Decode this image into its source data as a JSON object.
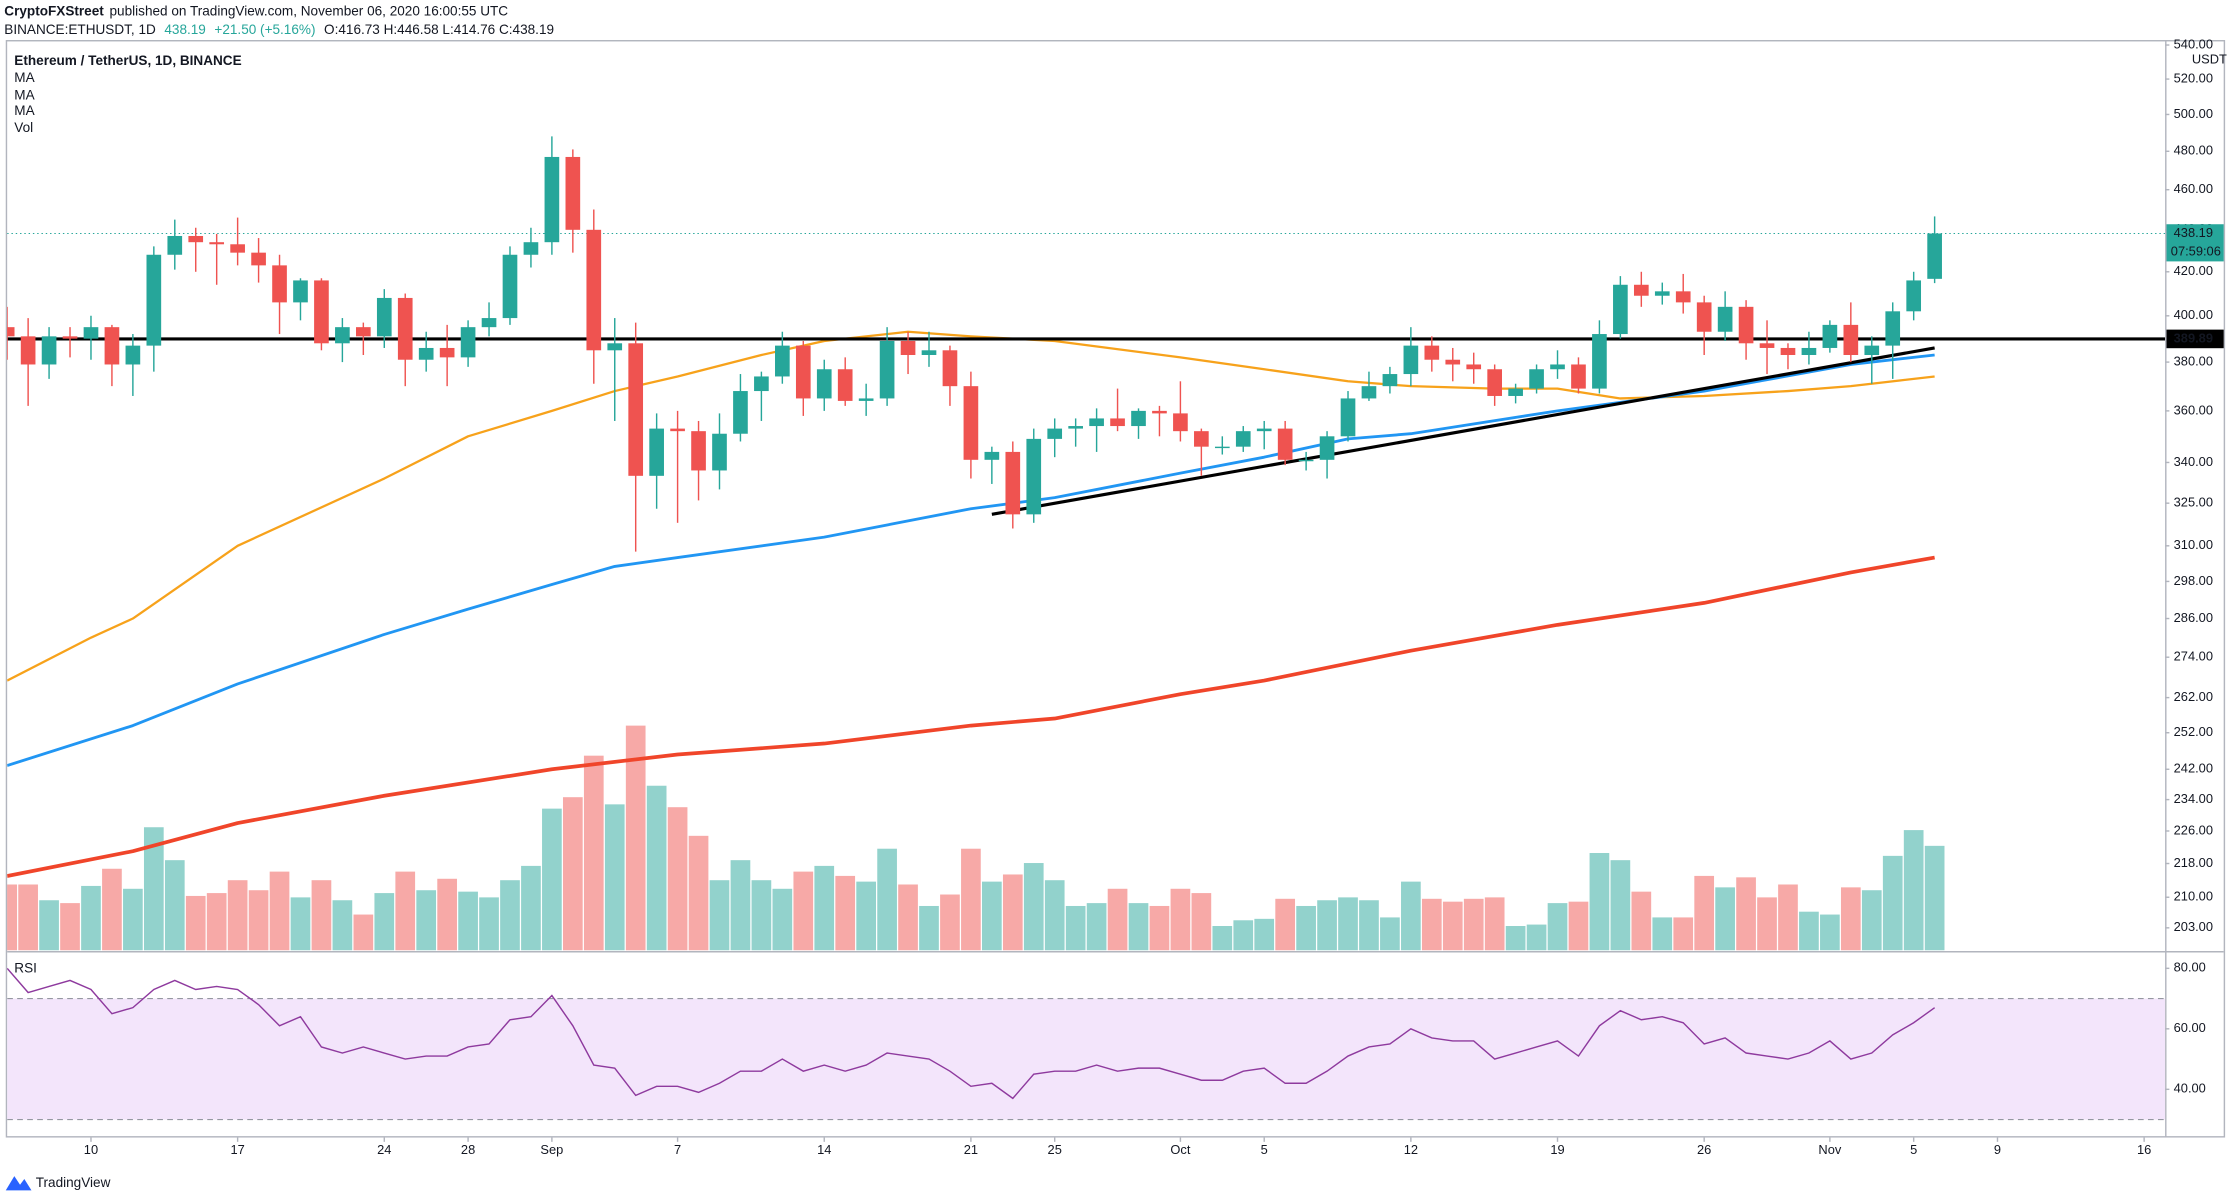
{
  "header": {
    "publisher": "CryptoFXStreet",
    "published": "published on TradingView.com, November 06, 2020 16:00:55 UTC",
    "symbol": "BINANCE:ETHUSDT, 1D",
    "last": "438.19",
    "change": "+21.50 (+5.16%)",
    "ohlc": "O:416.73 H:446.58 L:414.76 C:438.19"
  },
  "footer": {
    "brand": "TradingView"
  },
  "chart_data": {
    "type": "candlestick",
    "title": "Ethereum / TetherUS, 1D, BINANCE",
    "x": [
      "08-06",
      "08-07",
      "08-08",
      "08-09",
      "08-10",
      "08-11",
      "08-12",
      "08-13",
      "08-14",
      "08-15",
      "08-16",
      "08-17",
      "08-18",
      "08-19",
      "08-20",
      "08-21",
      "08-22",
      "08-23",
      "08-24",
      "08-25",
      "08-26",
      "08-27",
      "08-28",
      "08-29",
      "08-30",
      "08-31",
      "09-01",
      "09-02",
      "09-03",
      "09-04",
      "09-05",
      "09-06",
      "09-07",
      "09-08",
      "09-09",
      "09-10",
      "09-11",
      "09-12",
      "09-13",
      "09-14",
      "09-15",
      "09-16",
      "09-17",
      "09-18",
      "09-19",
      "09-20",
      "09-21",
      "09-22",
      "09-23",
      "09-24",
      "09-25",
      "09-26",
      "09-27",
      "09-28",
      "09-29",
      "09-30",
      "10-01",
      "10-02",
      "10-03",
      "10-04",
      "10-05",
      "10-06",
      "10-07",
      "10-08",
      "10-09",
      "10-10",
      "10-11",
      "10-12",
      "10-13",
      "10-14",
      "10-15",
      "10-16",
      "10-17",
      "10-18",
      "10-19",
      "10-20",
      "10-21",
      "10-22",
      "10-23",
      "10-24",
      "10-25",
      "10-26",
      "10-27",
      "10-28",
      "10-29",
      "10-30",
      "10-31",
      "11-01",
      "11-02",
      "11-03",
      "11-04",
      "11-05",
      "11-06"
    ],
    "open": [
      395,
      391,
      379,
      391,
      390,
      395,
      379,
      387,
      428,
      437,
      434,
      433,
      429,
      423,
      406,
      416,
      388,
      395,
      391,
      408,
      381,
      386,
      382,
      395,
      399,
      428,
      434,
      477,
      440,
      385,
      388,
      335,
      353,
      352,
      337,
      351,
      368,
      374,
      387,
      365,
      377,
      364,
      365,
      389,
      383,
      385,
      370,
      341,
      344,
      321,
      349,
      353,
      354,
      357,
      354,
      360,
      359,
      352,
      346,
      346,
      352,
      353,
      341,
      341,
      350,
      365,
      370,
      375,
      387,
      381,
      379,
      377,
      366,
      369,
      377,
      379,
      369,
      392,
      414,
      409,
      411,
      406,
      393,
      404,
      388,
      386,
      383,
      386,
      396,
      383,
      387,
      402,
      416.73
    ],
    "high": [
      404,
      399,
      395,
      395,
      400,
      396,
      392,
      432,
      445,
      441,
      438,
      446,
      436,
      428,
      417,
      417,
      399,
      397,
      412,
      410,
      393,
      396,
      398,
      406,
      432,
      441,
      488,
      481,
      450,
      399,
      397,
      359,
      360,
      356,
      359,
      375,
      376,
      393,
      389,
      381,
      382,
      371,
      395,
      393,
      393,
      387,
      376,
      346,
      348,
      353,
      357,
      357,
      361,
      369,
      361,
      362,
      372,
      353,
      350,
      354,
      356,
      356,
      344,
      352,
      368,
      376,
      378,
      395,
      391,
      386,
      384,
      379,
      371,
      379,
      385,
      382,
      398,
      418,
      420,
      415,
      419,
      409,
      411,
      407,
      398,
      388,
      393,
      398,
      406,
      391,
      406,
      420,
      446.58
    ],
    "low": [
      381,
      362,
      373,
      382,
      381,
      370,
      366,
      376,
      421,
      420,
      414,
      423,
      415,
      392,
      398,
      385,
      380,
      383,
      386,
      370,
      376,
      370,
      378,
      391,
      396,
      422,
      428,
      429,
      371,
      356,
      308,
      323,
      318,
      326,
      330,
      348,
      356,
      371,
      358,
      360,
      362,
      358,
      362,
      375,
      378,
      362,
      334,
      332,
      316,
      318,
      342,
      346,
      344,
      352,
      349,
      350,
      348,
      335,
      343,
      344,
      345,
      339,
      337,
      334,
      348,
      364,
      367,
      370,
      376,
      372,
      371,
      362,
      363,
      367,
      373,
      367,
      367,
      390,
      404,
      405,
      401,
      383,
      389,
      381,
      375,
      377,
      379,
      384,
      380,
      371,
      373,
      398,
      414.76
    ],
    "close": [
      391,
      379,
      391,
      390,
      395,
      379,
      387,
      428,
      437,
      434,
      433,
      429,
      423,
      406,
      416,
      388,
      395,
      391,
      408,
      381,
      386,
      382,
      395,
      399,
      428,
      434,
      477,
      440,
      385,
      388,
      335,
      353,
      352,
      337,
      351,
      368,
      374,
      387,
      365,
      377,
      364,
      365,
      389,
      383,
      385,
      370,
      341,
      344,
      321,
      349,
      353,
      354,
      357,
      354,
      360,
      359,
      352,
      346,
      346,
      352,
      353,
      341,
      341,
      350,
      365,
      370,
      375,
      387,
      381,
      379,
      377,
      366,
      369,
      377,
      379,
      369,
      392,
      414,
      409,
      411,
      406,
      393,
      404,
      388,
      386,
      383,
      386,
      396,
      383,
      387,
      402,
      416,
      438.19
    ],
    "up_color": "#26a69a",
    "down_color": "#ef5350",
    "log": true,
    "ylim": [
      198,
      543
    ],
    "y_unit": "USDT",
    "yticks": [
      {
        "value": 540,
        "label": "540.00"
      },
      {
        "value": 520,
        "label": "520.00"
      },
      {
        "value": 500,
        "label": "500.00"
      },
      {
        "value": 480,
        "label": "480.00"
      },
      {
        "value": 460,
        "label": "460.00"
      },
      {
        "value": 440,
        "label": "440.00"
      },
      {
        "value": 420,
        "label": "420.00"
      },
      {
        "value": 400,
        "label": "400.00"
      },
      {
        "value": 380,
        "label": "380.00"
      },
      {
        "value": 360,
        "label": "360.00"
      },
      {
        "value": 340,
        "label": "340.00"
      },
      {
        "value": 325,
        "label": "325.00"
      },
      {
        "value": 310,
        "label": "310.00"
      },
      {
        "value": 298,
        "label": "298.00"
      },
      {
        "value": 286,
        "label": "286.00"
      },
      {
        "value": 274,
        "label": "274.00"
      },
      {
        "value": 262,
        "label": "262.00"
      },
      {
        "value": 252,
        "label": "252.00"
      },
      {
        "value": 242,
        "label": "242.00"
      },
      {
        "value": 234,
        "label": "234.00"
      },
      {
        "value": 226,
        "label": "226.00"
      },
      {
        "value": 218,
        "label": "218.00"
      },
      {
        "value": 210,
        "label": "210.00"
      },
      {
        "value": 203,
        "label": "203.00"
      }
    ],
    "xlim": [
      "08-06",
      "11-17"
    ],
    "xticks": [
      {
        "value": "08-10",
        "label": "10"
      },
      {
        "value": "08-17",
        "label": "17"
      },
      {
        "value": "08-24",
        "label": "24"
      },
      {
        "value": "08-28",
        "label": "28"
      },
      {
        "value": "09-01",
        "label": "Sep"
      },
      {
        "value": "09-07",
        "label": "7"
      },
      {
        "value": "09-14",
        "label": "14"
      },
      {
        "value": "09-21",
        "label": "21"
      },
      {
        "value": "09-25",
        "label": "25"
      },
      {
        "value": "10-01",
        "label": "Oct"
      },
      {
        "value": "10-05",
        "label": "5"
      },
      {
        "value": "10-12",
        "label": "12"
      },
      {
        "value": "10-19",
        "label": "19"
      },
      {
        "value": "10-26",
        "label": "26"
      },
      {
        "value": "11-01",
        "label": "Nov"
      },
      {
        "value": "11-05",
        "label": "5"
      },
      {
        "value": "11-09",
        "label": "9"
      },
      {
        "value": "11-16",
        "label": "16"
      }
    ],
    "series": [
      {
        "name": "MA",
        "color": "#f7a21b",
        "width": 1.6,
        "x": [
          "08-06",
          "08-10",
          "08-12",
          "08-17",
          "08-24",
          "08-28",
          "09-01",
          "09-04",
          "09-07",
          "09-11",
          "09-14",
          "09-18",
          "09-21",
          "09-25",
          "10-01",
          "10-05",
          "10-09",
          "10-12",
          "10-16",
          "10-19",
          "10-22",
          "10-26",
          "10-30",
          "11-02",
          "11-06"
        ],
        "values": [
          267,
          280,
          286,
          310,
          334,
          350,
          360,
          368,
          374,
          383,
          389,
          393,
          391,
          389,
          382,
          377,
          372,
          370,
          369,
          369,
          365,
          366,
          368,
          370,
          374
        ]
      },
      {
        "name": "MA",
        "color": "#2196f3",
        "width": 2,
        "x": [
          "08-06",
          "08-12",
          "08-17",
          "08-24",
          "08-28",
          "09-01",
          "09-04",
          "09-07",
          "09-14",
          "09-21",
          "09-25",
          "10-01",
          "10-05",
          "10-09",
          "10-12",
          "10-19",
          "10-26",
          "11-02",
          "11-06"
        ],
        "values": [
          243,
          254,
          266,
          281,
          289,
          297,
          303,
          306,
          313,
          323,
          327,
          336,
          342,
          349,
          351,
          360,
          368,
          379,
          383
        ]
      },
      {
        "name": "MA",
        "color": "#f0452a",
        "width": 2.6,
        "x": [
          "08-06",
          "08-12",
          "08-17",
          "08-24",
          "09-01",
          "09-07",
          "09-14",
          "09-21",
          "09-25",
          "10-01",
          "10-05",
          "10-12",
          "10-19",
          "10-26",
          "11-02",
          "11-06"
        ],
        "values": [
          215,
          221,
          228,
          235,
          242,
          246,
          249,
          254,
          256,
          263,
          267,
          276,
          284,
          291,
          301,
          306
        ]
      }
    ],
    "volume": {
      "name": "Vol",
      "ylim": [
        0,
        636
      ],
      "values": [
        46,
        46,
        35,
        33,
        45,
        57,
        43,
        86,
        63,
        38,
        40,
        49,
        42,
        55,
        37,
        49,
        35,
        25,
        40,
        55,
        42,
        50,
        41,
        37,
        49,
        59,
        99,
        107,
        136,
        102,
        157,
        115,
        100,
        80,
        49,
        63,
        49,
        43,
        55,
        59,
        52,
        48,
        71,
        46,
        31,
        39,
        71,
        48,
        53,
        61,
        49,
        31,
        33,
        43,
        33,
        31,
        43,
        40,
        17,
        21,
        22,
        36,
        31,
        35,
        37,
        35,
        23,
        48,
        36,
        34,
        36,
        37,
        17,
        18,
        33,
        34,
        68,
        63,
        41,
        23,
        23,
        52,
        44,
        51,
        37,
        46,
        27,
        25,
        44,
        42,
        66,
        84,
        73
      ]
    },
    "price_lines": [
      {
        "value": 389.89,
        "label": "389.89",
        "color": "#000000"
      }
    ],
    "trend_lines": [
      {
        "x": [
          "09-22",
          "11-06"
        ],
        "values": [
          321,
          386
        ],
        "color": "#000000"
      }
    ],
    "last_price": {
      "label": "438.19",
      "countdown": "07:59:06"
    },
    "rsi": {
      "name": "RSI",
      "color": "#8e3a9e",
      "band": [
        30,
        70
      ],
      "band_color": "#f3e5fb",
      "ylim": [
        25,
        85
      ],
      "yticks": [
        {
          "value": 80,
          "label": "80.00"
        },
        {
          "value": 60,
          "label": "60.00"
        },
        {
          "value": 40,
          "label": "40.00"
        }
      ],
      "values": [
        80,
        72,
        74,
        76,
        73,
        65,
        67,
        73,
        76,
        73,
        74,
        73,
        68,
        61,
        64,
        54,
        52,
        54,
        52,
        50,
        51,
        51,
        54,
        55,
        63,
        64,
        71,
        61,
        48,
        47,
        38,
        41,
        41,
        39,
        42,
        46,
        46,
        50,
        46,
        48,
        46,
        48,
        52,
        51,
        50,
        46,
        41,
        42,
        37,
        45,
        46,
        46,
        48,
        46,
        47,
        47,
        45,
        43,
        43,
        46,
        47,
        42,
        42,
        46,
        51,
        54,
        55,
        60,
        57,
        56,
        56,
        50,
        52,
        54,
        56,
        51,
        61,
        66,
        63,
        64,
        62,
        55,
        57,
        52,
        51,
        50,
        52,
        56,
        50,
        52,
        58,
        62,
        67
      ]
    }
  }
}
